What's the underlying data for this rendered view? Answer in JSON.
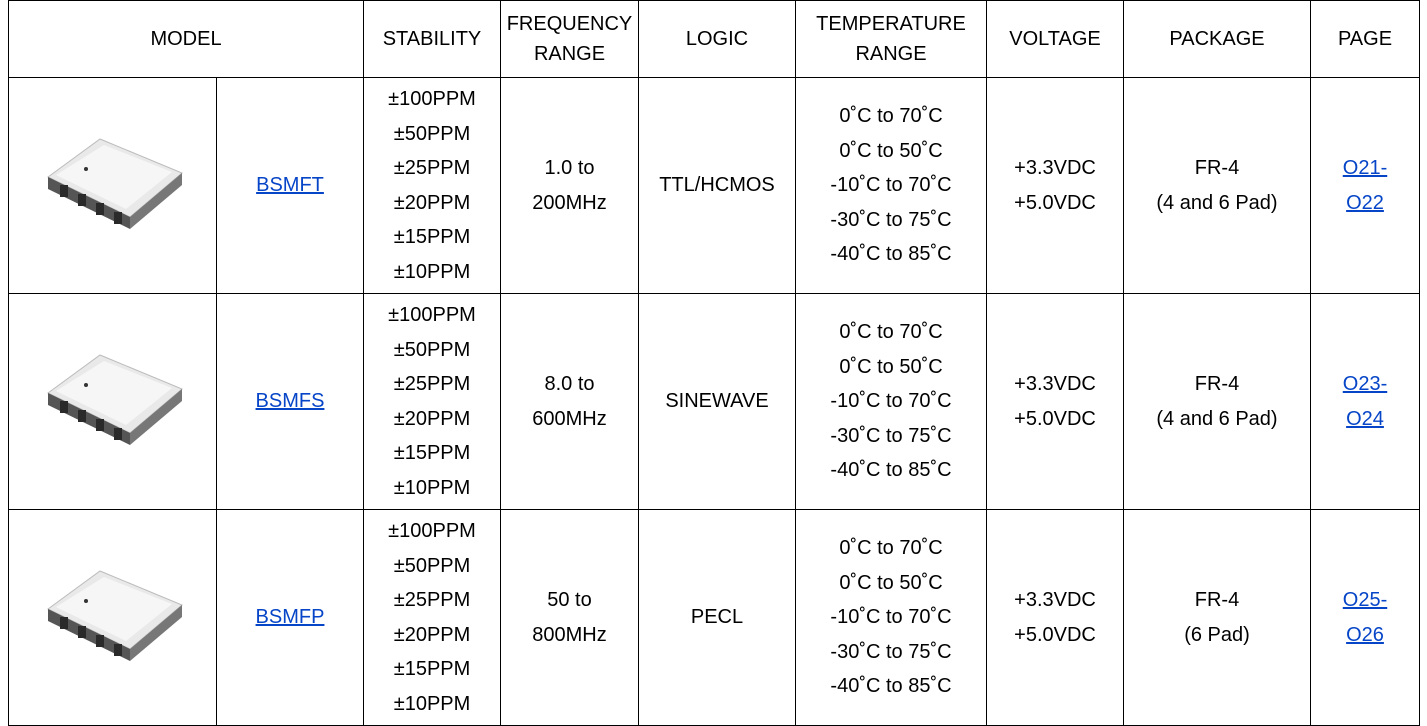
{
  "header": [
    [
      "MODEL"
    ],
    [
      "STABILITY"
    ],
    [
      "FREQUENCY",
      "RANGE"
    ],
    [
      "LOGIC"
    ],
    [
      "TEMPERATURE",
      "RANGE"
    ],
    [
      "VOLTAGE"
    ],
    [
      "PACKAGE"
    ],
    [
      "PAGE"
    ]
  ],
  "rows": [
    {
      "model": "BSMFT",
      "stability": [
        "±100PPM",
        "±50PPM",
        "±25PPM",
        "±20PPM",
        "±15PPM",
        "±10PPM"
      ],
      "frequency": [
        "1.0 to",
        "200MHz"
      ],
      "logic": "TTL/HCMOS",
      "temperature": [
        "0˚C to 70˚C",
        "0˚C to 50˚C",
        "-10˚C to 70˚C",
        "-30˚C to 75˚C",
        "-40˚C to 85˚C"
      ],
      "voltage": [
        "+3.3VDC",
        "+5.0VDC"
      ],
      "package": [
        "FR-4",
        "(4 and 6 Pad)"
      ],
      "page": [
        "O21-",
        "O22"
      ]
    },
    {
      "model": "BSMFS",
      "stability": [
        "±100PPM",
        "±50PPM",
        "±25PPM",
        "±20PPM",
        "±15PPM",
        "±10PPM"
      ],
      "frequency": [
        "8.0 to",
        "600MHz"
      ],
      "logic": "SINEWAVE",
      "temperature": [
        "0˚C to 70˚C",
        "0˚C to 50˚C",
        "-10˚C to 70˚C",
        "-30˚C to 75˚C",
        "-40˚C to 85˚C"
      ],
      "voltage": [
        "+3.3VDC",
        "+5.0VDC"
      ],
      "package": [
        "FR-4",
        "(4 and 6 Pad)"
      ],
      "page": [
        "O23-",
        "O24"
      ]
    },
    {
      "model": "BSMFP",
      "stability": [
        "±100PPM",
        "±50PPM",
        "±25PPM",
        "±20PPM",
        "±15PPM",
        "±10PPM"
      ],
      "frequency": [
        "50 to",
        "800MHz"
      ],
      "logic": "PECL",
      "temperature": [
        "0˚C to 70˚C",
        "0˚C to 50˚C",
        "-10˚C to 70˚C",
        "-30˚C to 75˚C",
        "-40˚C to 85˚C"
      ],
      "voltage": [
        "+3.3VDC",
        "+5.0VDC"
      ],
      "package": [
        "FR-4",
        "(6 Pad)"
      ],
      "page": [
        "O25-",
        "O26"
      ]
    }
  ]
}
